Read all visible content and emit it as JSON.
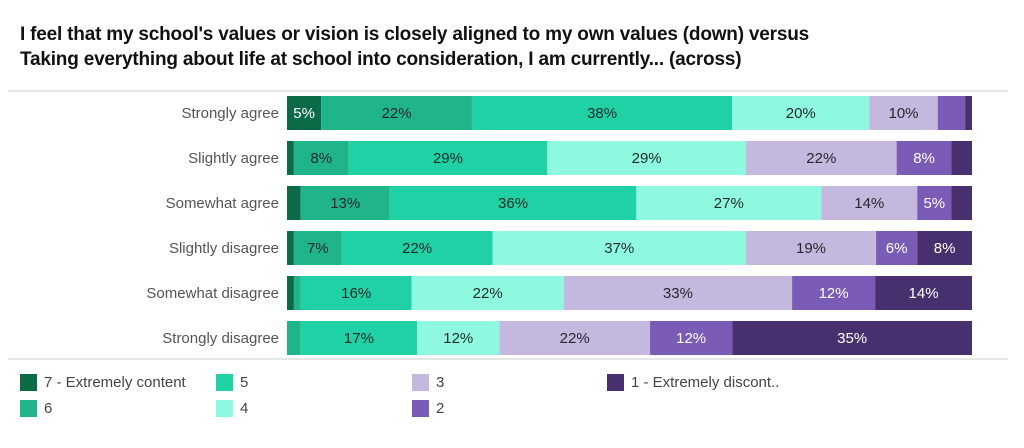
{
  "chart_data": {
    "type": "bar",
    "orientation": "horizontal",
    "stacked": true,
    "percent": true,
    "title": "I feel that my school's values or vision is closely aligned to my own values (down) versus Taking everything about life at school into consideration, I am currently... (across)",
    "title_lines": [
      "I feel that my school's values or vision is closely aligned to my own values (down) versus",
      "Taking everything about life at school into consideration, I am currently... (across)"
    ],
    "xlabel": "",
    "ylabel": "",
    "xlim": [
      0,
      100
    ],
    "grid": false,
    "legend_position": "bottom",
    "categories": [
      "Strongly agree",
      "Slightly agree",
      "Somewhat agree",
      "Slightly disagree",
      "Somewhat disagree",
      "Strongly disagree"
    ],
    "series": [
      {
        "name": "7 - Extremely content",
        "color": "#0b6b47",
        "label_color": "#ffffff",
        "values": [
          5,
          1,
          2,
          1,
          1,
          0
        ],
        "labels": [
          "5%",
          "",
          "",
          "",
          "",
          ""
        ]
      },
      {
        "name": "6",
        "color": "#20b48a",
        "label_color": "#1f2a2a",
        "values": [
          22,
          8,
          13,
          7,
          1,
          2
        ],
        "labels": [
          "22%",
          "8%",
          "13%",
          "7%",
          "",
          ""
        ]
      },
      {
        "name": "5",
        "color": "#1fd1a5",
        "label_color": "#1f2a2a",
        "values": [
          38,
          29,
          36,
          22,
          16,
          17
        ],
        "labels": [
          "38%",
          "29%",
          "36%",
          "22%",
          "16%",
          "17%"
        ]
      },
      {
        "name": "4",
        "color": "#8ff8e0",
        "label_color": "#1f2a2a",
        "values": [
          20,
          29,
          27,
          37,
          22,
          12
        ],
        "labels": [
          "20%",
          "29%",
          "27%",
          "37%",
          "22%",
          "12%"
        ]
      },
      {
        "name": "3",
        "color": "#c5b8de",
        "label_color": "#2a2430",
        "values": [
          10,
          22,
          14,
          19,
          33,
          22
        ],
        "labels": [
          "10%",
          "22%",
          "14%",
          "19%",
          "33%",
          "22%"
        ]
      },
      {
        "name": "2",
        "color": "#7a5bb5",
        "label_color": "#ffffff",
        "values": [
          4,
          8,
          5,
          6,
          12,
          12
        ],
        "labels": [
          "",
          "8%",
          "5%",
          "6%",
          "12%",
          "12%"
        ]
      },
      {
        "name": "1 - Extremely discont..",
        "color": "#48306f",
        "label_color": "#ffffff",
        "values": [
          1,
          3,
          3,
          8,
          14,
          35
        ],
        "labels": [
          "",
          "",
          "",
          "8%",
          "14%",
          "35%"
        ]
      }
    ]
  },
  "legend": {
    "items": [
      {
        "label": "7 - Extremely content",
        "color": "#0b6b47"
      },
      {
        "label": "6",
        "color": "#20b48a"
      },
      {
        "label": "5",
        "color": "#1fd1a5"
      },
      {
        "label": "4",
        "color": "#8ff8e0"
      },
      {
        "label": "3",
        "color": "#c5b8de"
      },
      {
        "label": "2",
        "color": "#7a5bb5"
      },
      {
        "label": "1 - Extremely discont..",
        "color": "#48306f"
      }
    ]
  }
}
